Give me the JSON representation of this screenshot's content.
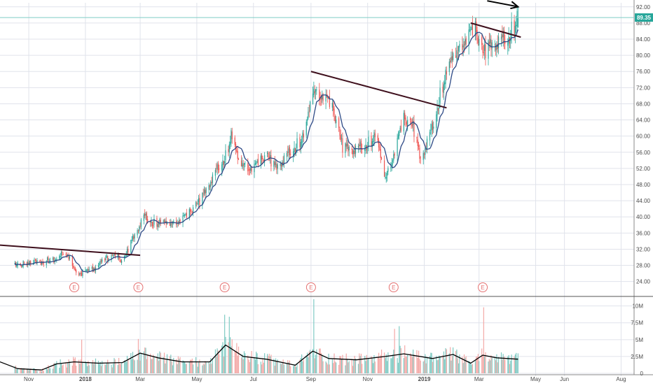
{
  "chart_data": {
    "type": "candlestick",
    "title": "",
    "price_panel": {
      "y_ticks": [
        "24.00",
        "28.00",
        "32.00",
        "36.00",
        "40.00",
        "44.00",
        "48.00",
        "52.00",
        "56.00",
        "60.00",
        "64.00",
        "68.00",
        "72.00",
        "76.00",
        "80.00",
        "84.00",
        "88.00",
        "92.00"
      ],
      "y_range": [
        21,
        93
      ],
      "last_price": "89.35",
      "last_price_value": 89.35,
      "close_path": [
        [
          "2017-10-17",
          28.5
        ],
        [
          "2017-11-01",
          28.2
        ],
        [
          "2017-11-15",
          29.0
        ],
        [
          "2017-11-30",
          29.5
        ],
        [
          "2017-12-08",
          31.0
        ],
        [
          "2017-12-15",
          29.5
        ],
        [
          "2017-12-22",
          26.0
        ],
        [
          "2018-01-05",
          26.5
        ],
        [
          "2018-01-15",
          28.0
        ],
        [
          "2018-01-25",
          30.0
        ],
        [
          "2018-02-05",
          30.0
        ],
        [
          "2018-02-10",
          28.5
        ],
        [
          "2018-02-20",
          34.0
        ],
        [
          "2018-03-05",
          40.0
        ],
        [
          "2018-03-15",
          38.5
        ],
        [
          "2018-04-01",
          38.5
        ],
        [
          "2018-04-20",
          40.0
        ],
        [
          "2018-05-05",
          44.0
        ],
        [
          "2018-05-20",
          50.5
        ],
        [
          "2018-06-01",
          55.0
        ],
        [
          "2018-06-07",
          60.0
        ],
        [
          "2018-06-15",
          54.0
        ],
        [
          "2018-07-01",
          52.0
        ],
        [
          "2018-07-15",
          55.0
        ],
        [
          "2018-07-25",
          52.0
        ],
        [
          "2018-08-10",
          56.0
        ],
        [
          "2018-08-25",
          60.0
        ],
        [
          "2018-09-03",
          72.0
        ],
        [
          "2018-09-15",
          70.0
        ],
        [
          "2018-09-25",
          66.0
        ],
        [
          "2018-10-05",
          57.0
        ],
        [
          "2018-10-20",
          56.5
        ],
        [
          "2018-11-01",
          58.0
        ],
        [
          "2018-11-10",
          60.0
        ],
        [
          "2018-11-20",
          50.0
        ],
        [
          "2018-12-01",
          57.0
        ],
        [
          "2018-12-10",
          64.0
        ],
        [
          "2018-12-20",
          62.0
        ],
        [
          "2018-12-28",
          54.0
        ],
        [
          "2019-01-10",
          62.0
        ],
        [
          "2019-01-20",
          72.0
        ],
        [
          "2019-02-01",
          80.0
        ],
        [
          "2019-02-12",
          84.0
        ],
        [
          "2019-02-25",
          86.0
        ],
        [
          "2019-03-05",
          80.0
        ],
        [
          "2019-03-12",
          82.0
        ],
        [
          "2019-03-20",
          83.0
        ],
        [
          "2019-04-01",
          84.0
        ],
        [
          "2019-04-12",
          89.35
        ]
      ],
      "trendlines": [
        {
          "from": [
            "2017-10-01",
            33.0
          ],
          "to": [
            "2018-03-01",
            30.5
          ]
        },
        {
          "from": [
            "2018-09-01",
            76.0
          ],
          "to": [
            "2019-01-25",
            67.0
          ]
        },
        {
          "from": [
            "2019-02-20",
            88.0
          ],
          "to": [
            "2019-04-15",
            84.5
          ]
        }
      ],
      "earnings_label": "E",
      "earnings_dates": [
        "2017-12-20",
        "2018-02-27",
        "2018-05-31",
        "2018-09-01",
        "2018-11-29",
        "2019-03-05"
      ]
    },
    "volume_panel": {
      "y_ticks": [
        "0",
        "2.5M",
        "5M",
        "7.5M",
        "10M"
      ],
      "y_range": [
        0,
        11000000
      ],
      "volume_avg_path": [
        [
          "2017-10-01",
          1700000
        ],
        [
          "2017-10-20",
          700000
        ],
        [
          "2017-11-15",
          500000
        ],
        [
          "2017-12-01",
          1400000
        ],
        [
          "2017-12-20",
          1700000
        ],
        [
          "2018-01-15",
          1500000
        ],
        [
          "2018-02-10",
          1600000
        ],
        [
          "2018-03-01",
          3000000
        ],
        [
          "2018-03-20",
          2300000
        ],
        [
          "2018-04-15",
          1700000
        ],
        [
          "2018-05-15",
          1700000
        ],
        [
          "2018-06-01",
          4200000
        ],
        [
          "2018-06-20",
          2500000
        ],
        [
          "2018-07-15",
          2100000
        ],
        [
          "2018-08-15",
          1200000
        ],
        [
          "2018-09-03",
          3300000
        ],
        [
          "2018-09-20",
          2200000
        ],
        [
          "2018-10-20",
          2000000
        ],
        [
          "2018-11-20",
          2500000
        ],
        [
          "2018-12-10",
          2900000
        ],
        [
          "2019-01-10",
          2200000
        ],
        [
          "2019-02-01",
          2800000
        ],
        [
          "2019-02-20",
          1500000
        ],
        [
          "2019-03-05",
          2700000
        ],
        [
          "2019-03-20",
          2300000
        ],
        [
          "2019-04-12",
          2100000
        ]
      ],
      "volume_spikes": [
        [
          "2017-12-28",
          5000000
        ],
        [
          "2018-02-27",
          5100000
        ],
        [
          "2018-05-31",
          8700000
        ],
        [
          "2018-06-05",
          8400000
        ],
        [
          "2018-09-04",
          11000000
        ],
        [
          "2018-11-30",
          6600000
        ],
        [
          "2018-12-05",
          7000000
        ],
        [
          "2019-03-06",
          9800000
        ]
      ]
    },
    "x_ticks": [
      "Nov",
      "2018",
      "Mar",
      "May",
      "Jul",
      "Sep",
      "Nov",
      "2019",
      "Mar",
      "May",
      "Jun",
      "Aug"
    ],
    "x_tick_dates": [
      "2017-11-01",
      "2018-01-01",
      "2018-03-01",
      "2018-05-01",
      "2018-07-01",
      "2018-09-01",
      "2018-11-01",
      "2019-01-01",
      "2019-03-01",
      "2019-05-01",
      "2019-06-01",
      "2019-08-01"
    ],
    "x_range": [
      "2017-10-01",
      "2019-08-15"
    ],
    "colors": {
      "up": "#26a69a",
      "down": "#ef5350",
      "up_volume": "#80cbc4",
      "down_volume": "#f4a9a7",
      "moving_average": "#2e4a86",
      "volume_average": "#000000",
      "trendline": "#3e0f1c",
      "price_line": "#7fcdc5",
      "earnings": "#e57373",
      "axis_text": "#4a4a4a",
      "grid": "#e0e3eb"
    }
  }
}
